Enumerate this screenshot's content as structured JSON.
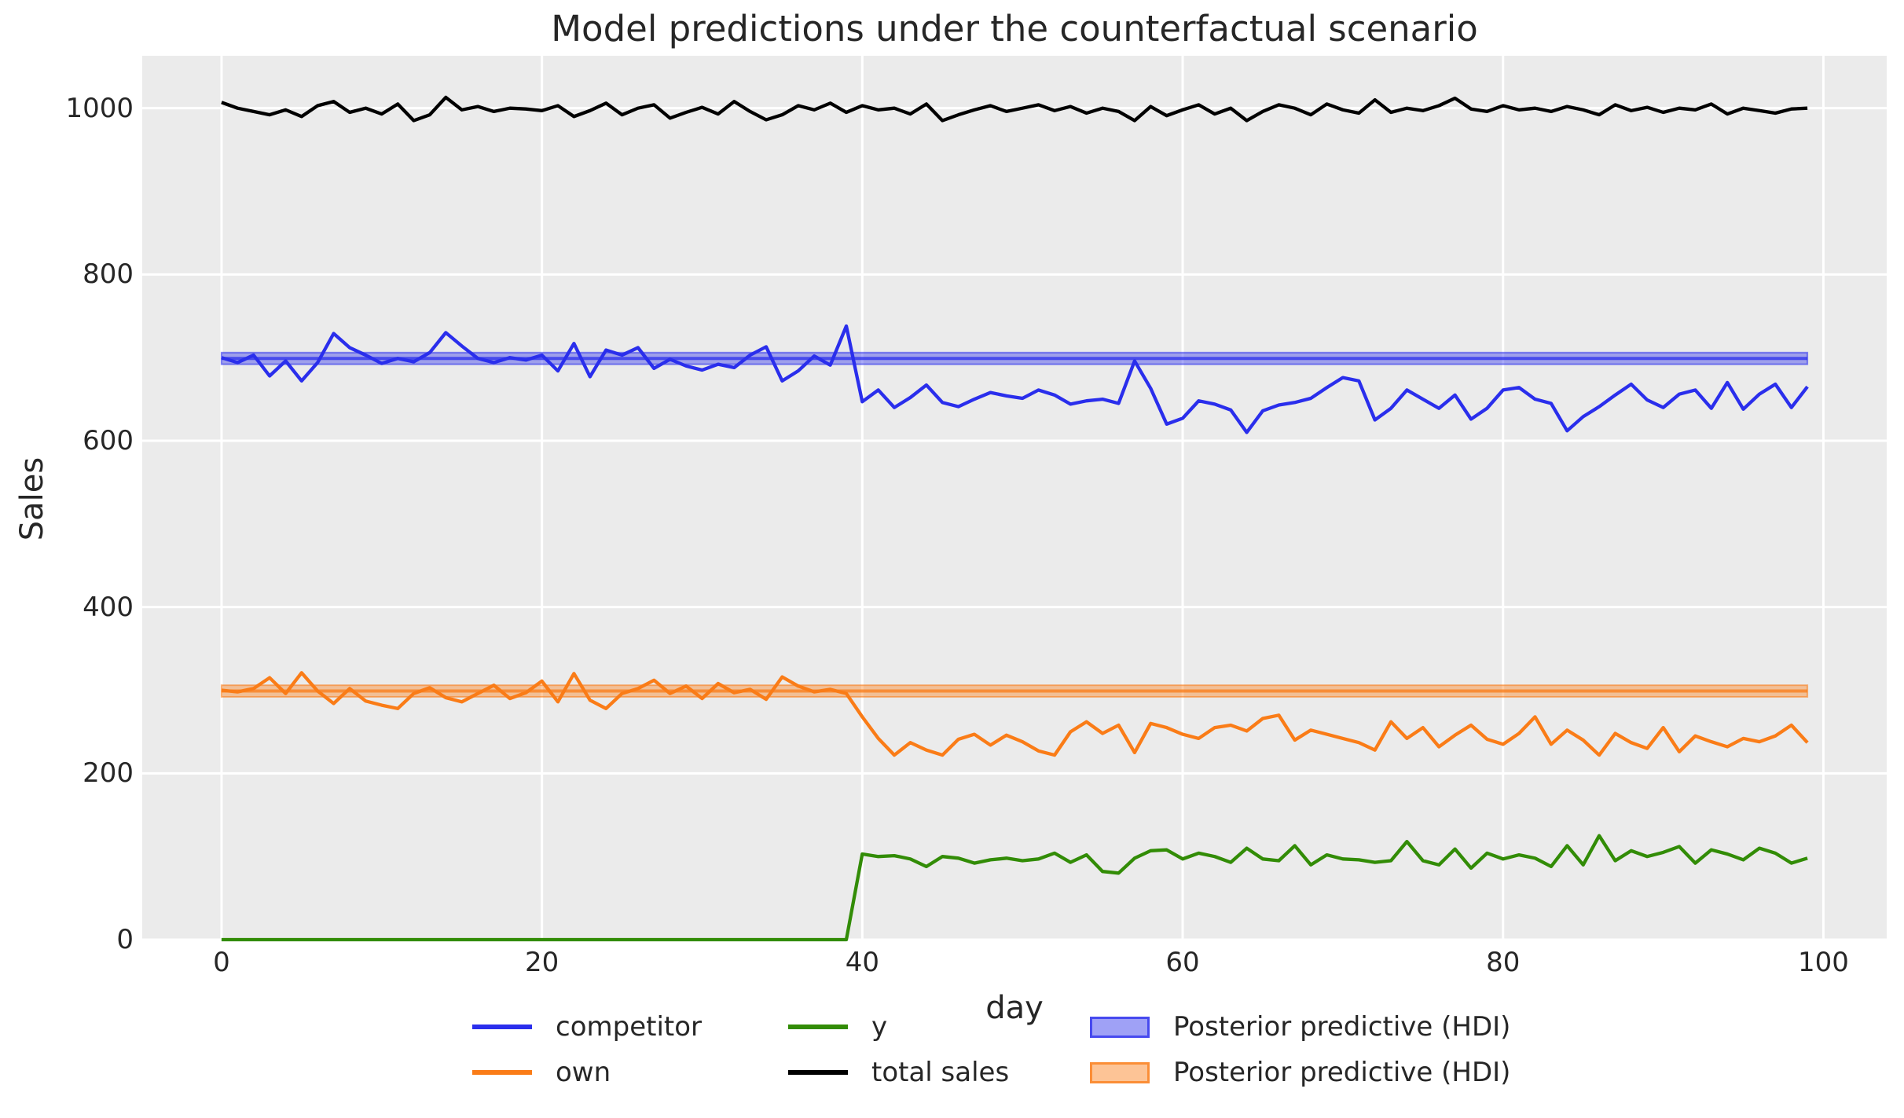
{
  "figure": {
    "title": "Model predictions under the counterfactual scenario",
    "background_color": "#ffffff",
    "axes_background_color": "#ebebeb",
    "grid_color": "#ffffff",
    "text_color": "#262626"
  },
  "chart_data": {
    "type": "line",
    "title": "Model predictions under the counterfactual scenario",
    "xlabel": "day",
    "ylabel": "Sales",
    "grid": true,
    "legend_position": "below-outside",
    "xlim": [
      -4.95,
      103.95
    ],
    "ylim": [
      0,
      1063
    ],
    "x_ticks": [
      0,
      20,
      40,
      60,
      80,
      100
    ],
    "y_ticks": [
      0,
      200,
      400,
      600,
      800,
      1000
    ],
    "x": {
      "start": 0,
      "step": 1,
      "count": 100
    },
    "series": [
      {
        "name": "competitor",
        "color": "#2a2eec",
        "values": [
          700,
          694,
          703,
          678,
          696,
          672,
          694,
          729,
          712,
          703,
          693,
          699,
          695,
          706,
          730,
          714,
          699,
          694,
          700,
          697,
          703,
          684,
          717,
          677,
          709,
          703,
          712,
          687,
          698,
          690,
          685,
          692,
          688,
          703,
          713,
          672,
          684,
          702,
          691,
          738,
          647,
          661,
          640,
          652,
          667,
          646,
          641,
          650,
          658,
          654,
          651,
          661,
          655,
          644,
          648,
          650,
          645,
          696,
          663,
          620,
          627,
          648,
          644,
          637,
          610,
          636,
          643,
          646,
          651,
          664,
          676,
          672,
          625,
          639,
          661,
          650,
          639,
          655,
          626,
          639,
          661,
          664,
          650,
          645,
          612,
          629,
          641,
          655,
          668,
          649,
          640,
          656,
          661,
          639,
          670,
          638,
          656,
          668,
          640,
          665
        ]
      },
      {
        "name": "own",
        "color": "#fa7c17",
        "values": [
          300,
          298,
          302,
          315,
          296,
          321,
          299,
          284,
          302,
          287,
          282,
          278,
          296,
          303,
          291,
          286,
          296,
          306,
          290,
          297,
          311,
          286,
          320,
          288,
          278,
          296,
          302,
          312,
          296,
          305,
          290,
          308,
          297,
          301,
          289,
          316,
          305,
          298,
          301,
          296,
          268,
          242,
          222,
          237,
          228,
          222,
          241,
          247,
          234,
          246,
          238,
          227,
          222,
          250,
          262,
          248,
          258,
          225,
          260,
          255,
          247,
          242,
          255,
          258,
          251,
          266,
          270,
          240,
          252,
          247,
          242,
          237,
          228,
          262,
          242,
          255,
          232,
          246,
          258,
          241,
          235,
          248,
          268,
          235,
          252,
          240,
          222,
          248,
          237,
          230,
          255,
          226,
          245,
          238,
          232,
          242,
          238,
          245,
          258,
          237
        ]
      },
      {
        "name": "y",
        "color": "#328c06",
        "values": [
          0,
          0,
          0,
          0,
          0,
          0,
          0,
          0,
          0,
          0,
          0,
          0,
          0,
          0,
          0,
          0,
          0,
          0,
          0,
          0,
          0,
          0,
          0,
          0,
          0,
          0,
          0,
          0,
          0,
          0,
          0,
          0,
          0,
          0,
          0,
          0,
          0,
          0,
          0,
          0,
          103,
          100,
          101,
          97,
          88,
          100,
          98,
          92,
          96,
          98,
          95,
          97,
          104,
          93,
          102,
          82,
          80,
          98,
          107,
          108,
          97,
          104,
          100,
          93,
          110,
          97,
          95,
          113,
          90,
          102,
          97,
          96,
          93,
          95,
          118,
          95,
          90,
          109,
          86,
          104,
          97,
          102,
          98,
          88,
          113,
          90,
          125,
          95,
          107,
          100,
          105,
          112,
          92,
          108,
          103,
          96,
          110,
          104,
          92,
          98
        ]
      },
      {
        "name": "total sales",
        "color": "#000000",
        "values": [
          1007,
          1000,
          996,
          992,
          998,
          990,
          1003,
          1008,
          995,
          1000,
          993,
          1005,
          985,
          992,
          1013,
          998,
          1002,
          996,
          1000,
          999,
          997,
          1003,
          990,
          997,
          1006,
          992,
          1000,
          1004,
          988,
          995,
          1001,
          993,
          1008,
          996,
          986,
          992,
          1003,
          998,
          1006,
          995,
          1003,
          998,
          1000,
          993,
          1005,
          985,
          992,
          998,
          1003,
          996,
          1000,
          1004,
          997,
          1002,
          994,
          1000,
          996,
          985,
          1002,
          991,
          998,
          1004,
          993,
          1000,
          985,
          996,
          1004,
          1000,
          992,
          1005,
          998,
          994,
          1010,
          995,
          1000,
          997,
          1003,
          1012,
          999,
          996,
          1003,
          998,
          1000,
          996,
          1002,
          998,
          992,
          1004,
          997,
          1001,
          995,
          1000,
          998,
          1005,
          993,
          1000,
          997,
          994,
          999,
          1000
        ]
      }
    ],
    "hdi_bands": [
      {
        "name": "Posterior predictive (HDI)",
        "color": "#2a2eec",
        "low": 692,
        "high": 706,
        "mean": 699,
        "x_start": 0,
        "x_end": 99
      },
      {
        "name": "Posterior predictive (HDI)",
        "color": "#fa7c17",
        "low": 292,
        "high": 306,
        "mean": 299,
        "x_start": 0,
        "x_end": 99
      }
    ]
  },
  "legend": {
    "entries": [
      {
        "label": "competitor",
        "type": "line",
        "color": "#2a2eec"
      },
      {
        "label": "own",
        "type": "line",
        "color": "#fa7c17"
      },
      {
        "label": "y",
        "type": "line",
        "color": "#328c06"
      },
      {
        "label": "total sales",
        "type": "line",
        "color": "#000000"
      },
      {
        "label": "Posterior predictive (HDI)",
        "type": "patch",
        "color": "#2a2eec"
      },
      {
        "label": "Posterior predictive (HDI)",
        "type": "patch",
        "color": "#fa7c17"
      }
    ]
  }
}
